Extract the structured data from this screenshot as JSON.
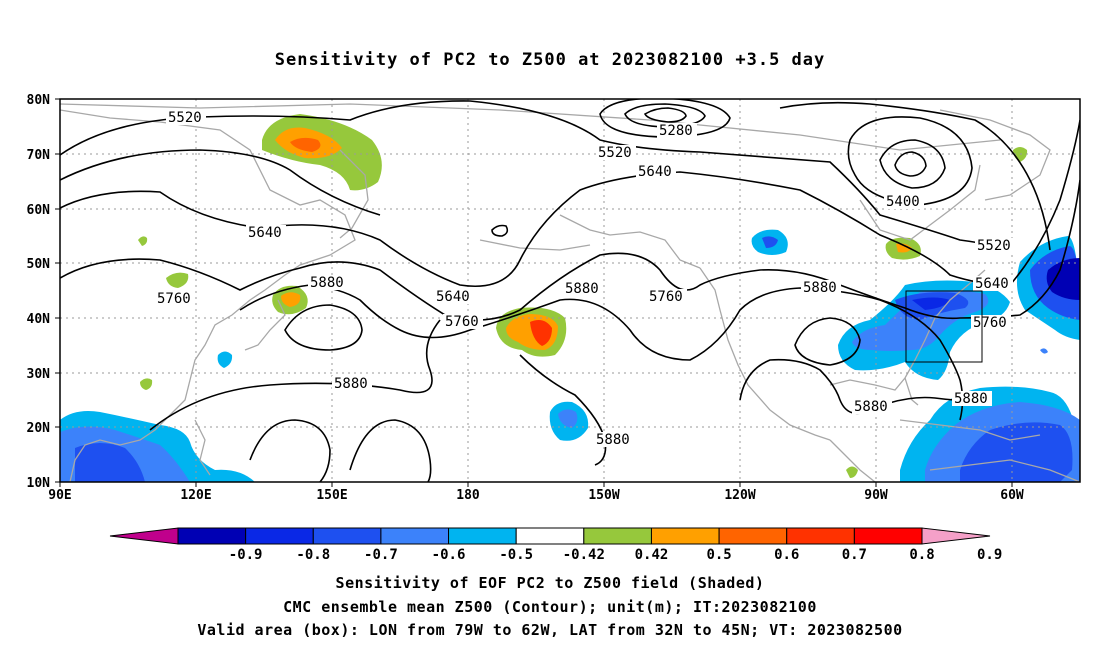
{
  "title": "Sensitivity of PC2 to Z500 at 2023082100 +3.5 day",
  "lat_labels": [
    "80N",
    "70N",
    "60N",
    "50N",
    "40N",
    "30N",
    "20N",
    "10N"
  ],
  "lon_labels": [
    "90E",
    "120E",
    "150E",
    "180",
    "150W",
    "120W",
    "90W",
    "60W"
  ],
  "contour_labels": [
    {
      "id": "c5520a",
      "text": "5520"
    },
    {
      "id": "c5280",
      "text": "5280"
    },
    {
      "id": "c5520b",
      "text": "5520"
    },
    {
      "id": "c5640a",
      "text": "5640"
    },
    {
      "id": "c5400",
      "text": "5400"
    },
    {
      "id": "c5640b",
      "text": "5640"
    },
    {
      "id": "c5520c",
      "text": "5520"
    },
    {
      "id": "c5760a",
      "text": "5760"
    },
    {
      "id": "c5880a",
      "text": "5880"
    },
    {
      "id": "c5640c",
      "text": "5640"
    },
    {
      "id": "c5760b",
      "text": "5760"
    },
    {
      "id": "c5880b",
      "text": "5880"
    },
    {
      "id": "c5760c",
      "text": "5760"
    },
    {
      "id": "c5880c",
      "text": "5880"
    },
    {
      "id": "c5640d",
      "text": "5640"
    },
    {
      "id": "c5760d",
      "text": "5760"
    },
    {
      "id": "c5880d",
      "text": "5880"
    },
    {
      "id": "c5880e",
      "text": "5880"
    },
    {
      "id": "c5880f",
      "text": "5880"
    },
    {
      "id": "c5880g",
      "text": "5880"
    }
  ],
  "colorbar": {
    "colors": [
      "#c0008c",
      "#0000b4",
      "#0a28e6",
      "#1e50f0",
      "#3c82fa",
      "#00b4f0",
      "#ffffff",
      "#96c83c",
      "#ffa000",
      "#ff6400",
      "#ff3200",
      "#ff0000",
      "#f5a0c8"
    ],
    "labels": [
      "-0.9",
      "-0.8",
      "-0.7",
      "-0.6",
      "-0.5",
      "-0.42",
      "0.42",
      "0.5",
      "0.6",
      "0.7",
      "0.8",
      "0.9"
    ]
  },
  "valid_box": {
    "lon_from": "79W",
    "lon_to": "62W",
    "lat_from": "32N",
    "lat_to": "45N"
  },
  "captions": [
    "Sensitivity of EOF PC2 to Z500 field (Shaded)",
    "CMC ensemble mean Z500 (Contour); unit(m); IT:2023082100",
    "Valid area (box): LON from 79W to 62W, LAT from 32N to 45N; VT: 2023082500"
  ]
}
